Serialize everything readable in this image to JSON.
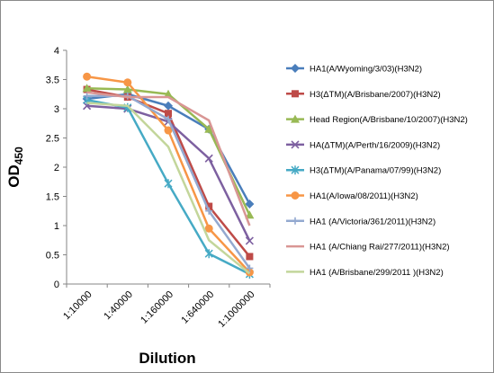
{
  "chart_data": {
    "type": "line",
    "title": "",
    "xlabel": "Dilution",
    "ylabel": {
      "main": "OD",
      "sub": "450"
    },
    "ylim": [
      0,
      4
    ],
    "yticks": [
      "0",
      "0.5",
      "1",
      "1.5",
      "2",
      "2.5",
      "3",
      "3.5",
      "4"
    ],
    "categories": [
      "1:10000",
      "1:40000",
      "1:160000",
      "1:640000",
      "1:1000000"
    ],
    "grid": false,
    "legend_position": "right",
    "series": [
      {
        "name": "HA1(A/Wyoming/3/03)(H3N2)",
        "color": "#4a7ebb",
        "marker": "diamond",
        "values": [
          3.17,
          3.25,
          3.05,
          2.65,
          1.37
        ]
      },
      {
        "name": "H3(ΔTM)(A/Brisbane/2007)(H3N2)",
        "color": "#be4b48",
        "marker": "square",
        "values": [
          3.33,
          3.2,
          2.92,
          1.33,
          0.47
        ]
      },
      {
        "name": "Head Region(A/Brisbane/10/2007)(H3N2)",
        "color": "#98b954",
        "marker": "triangle",
        "values": [
          3.35,
          3.33,
          3.25,
          2.65,
          1.18
        ]
      },
      {
        "name": "HA(ΔTM)(A/Perth/16/2009)(H3N2)",
        "color": "#7d60a0",
        "marker": "x",
        "values": [
          3.05,
          3.0,
          2.78,
          2.15,
          0.74
        ]
      },
      {
        "name": "H3(ΔTM)(A/Panama/07/99)(H3N2)",
        "color": "#46aac5",
        "marker": "star",
        "values": [
          3.15,
          3.02,
          1.72,
          0.52,
          0.17
        ]
      },
      {
        "name": "HA1(A/Iowa/08/2011)(H3N2)",
        "color": "#f79646",
        "marker": "circle",
        "values": [
          3.55,
          3.45,
          2.63,
          0.95,
          0.2
        ]
      },
      {
        "name": "HA1 (A/Victoria/361/2011)(H3N2)",
        "color": "#93a9d0",
        "marker": "plus",
        "values": [
          3.22,
          3.22,
          2.82,
          1.25,
          0.27
        ]
      },
      {
        "name": "HA1 (A/Chiang Rai/277/2011)(H3N2)",
        "color": "#d99694",
        "marker": "none",
        "values": [
          3.28,
          3.2,
          3.2,
          2.8,
          1.0
        ]
      },
      {
        "name": "HA1 (A/Brisbane/299/2011 )(H3N2)",
        "color": "#c3d69b",
        "marker": "none",
        "values": [
          3.1,
          3.05,
          2.35,
          0.75,
          0.18
        ]
      }
    ]
  }
}
